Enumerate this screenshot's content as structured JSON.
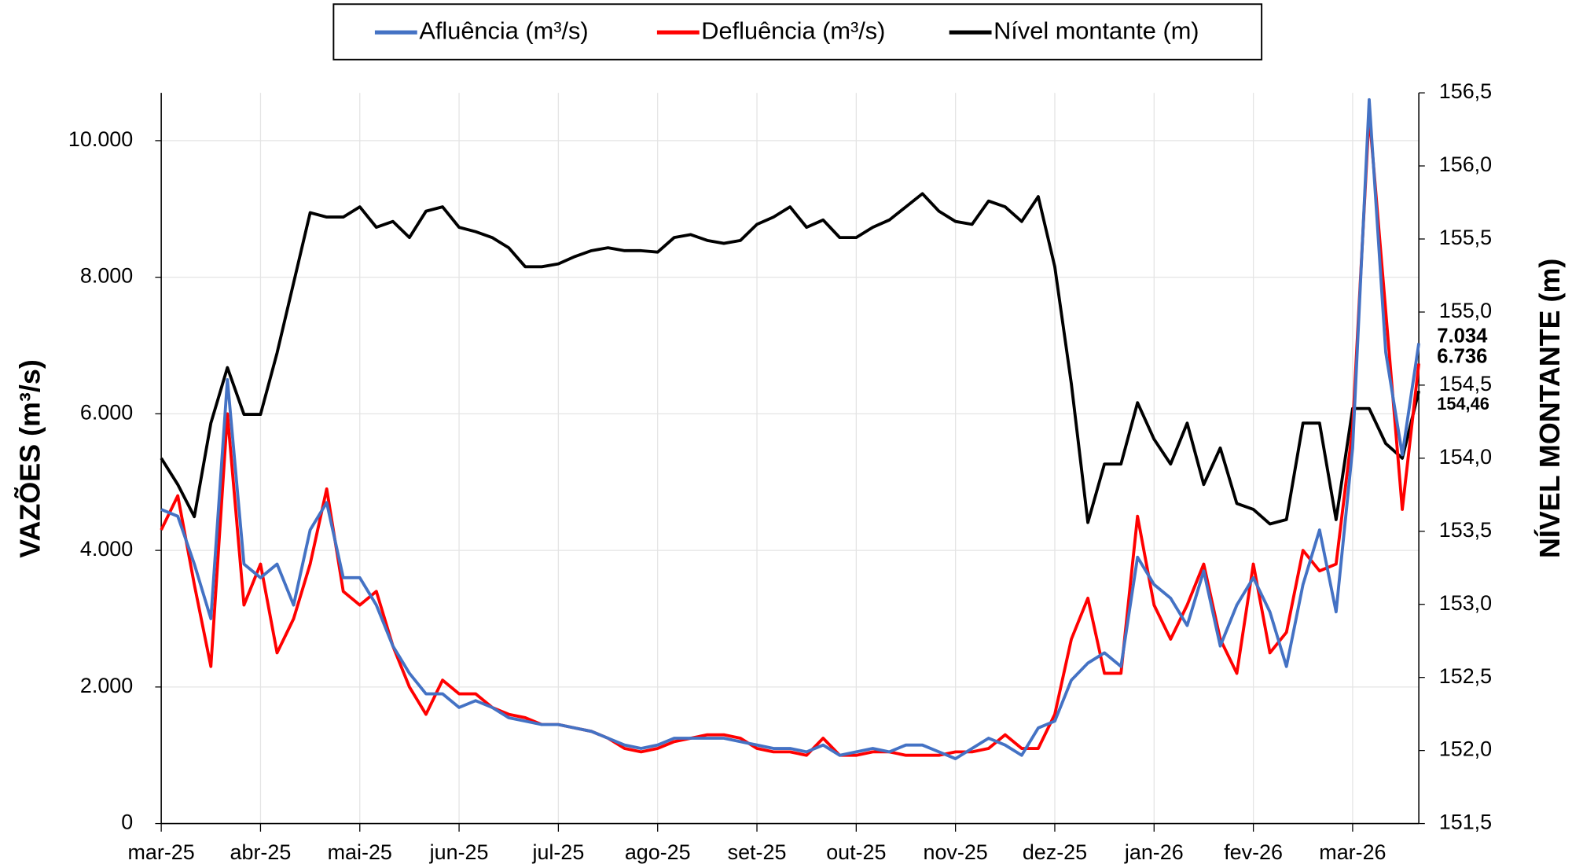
{
  "chart_data": {
    "type": "line",
    "categories": [
      "mar-25",
      null,
      null,
      null,
      null,
      null,
      "abr-25",
      null,
      null,
      null,
      null,
      null,
      "mai-25",
      null,
      null,
      null,
      null,
      null,
      "jun-25",
      null,
      null,
      null,
      null,
      null,
      "jul-25",
      null,
      null,
      null,
      null,
      null,
      "ago-25",
      null,
      null,
      null,
      null,
      null,
      "set-25",
      null,
      null,
      null,
      null,
      null,
      "out-25",
      null,
      null,
      null,
      null,
      null,
      "nov-25",
      null,
      null,
      null,
      null,
      null,
      "dez-25",
      null,
      null,
      null,
      null,
      null,
      "jan-26",
      null,
      null,
      null,
      null,
      null,
      "fev-26",
      null,
      null,
      null,
      null,
      null,
      "mar-26",
      null,
      null,
      null,
      null
    ],
    "ylabel": "VAZÕES (m³/s)",
    "y2label": "NÍVEL MONTANTE (m)",
    "ylim": [
      0,
      10700
    ],
    "yticks": [
      0,
      {
        "value": 2000,
        "label": "2.000"
      },
      {
        "value": 4000,
        "label": "4.000"
      },
      {
        "value": 6000,
        "label": "6.000"
      },
      {
        "value": 8000,
        "label": "8.000"
      },
      {
        "value": 10000,
        "label": "10.000"
      }
    ],
    "y2lim": [
      151.5,
      156.5
    ],
    "y2ticks": [
      {
        "value": 151.5,
        "label": "151,5"
      },
      {
        "value": 152.0,
        "label": "152,0"
      },
      {
        "value": 152.5,
        "label": "152,5"
      },
      {
        "value": 153.0,
        "label": "153,0"
      },
      {
        "value": 153.5,
        "label": "153,5"
      },
      {
        "value": 154.0,
        "label": "154,0"
      },
      {
        "value": 154.5,
        "label": "154,5"
      },
      {
        "value": 155.0,
        "label": "155,0"
      },
      {
        "value": 155.5,
        "label": "155,5"
      },
      {
        "value": 156.0,
        "label": "156,0"
      },
      {
        "value": 156.5,
        "label": "156,5"
      }
    ],
    "grid": true,
    "legend": "top",
    "series": [
      {
        "name": "Afluência (m³/s)",
        "color": "#4472c4",
        "values": [
          4600,
          4500,
          3800,
          3000,
          6500,
          3800,
          3600,
          3800,
          3200,
          4300,
          4700,
          3600,
          3600,
          3200,
          2600,
          2200,
          1900,
          1900,
          1700,
          1800,
          1700,
          1550,
          1500,
          1450,
          1450,
          1400,
          1350,
          1250,
          1150,
          1100,
          1150,
          1250,
          1250,
          1250,
          1250,
          1200,
          1150,
          1100,
          1100,
          1050,
          1150,
          1000,
          1050,
          1100,
          1050,
          1150,
          1150,
          1050,
          950,
          1100,
          1250,
          1150,
          1000,
          1400,
          1500,
          2100,
          2350,
          2500,
          2300,
          3900,
          3500,
          3300,
          2900,
          3700,
          2600,
          3200,
          3600,
          3100,
          2300,
          3500,
          4300,
          3100,
          5500,
          10600,
          6900,
          5400,
          7034
        ],
        "value_labels": [
          null,
          null,
          null,
          null,
          null,
          null,
          null,
          null,
          null,
          null,
          null,
          null,
          null,
          null,
          null,
          null,
          null,
          null,
          null,
          null,
          null,
          null,
          null,
          null,
          null,
          null,
          null,
          null,
          null,
          null,
          null,
          null,
          null,
          null,
          null,
          null,
          null,
          null,
          null,
          null,
          null,
          null,
          null,
          null,
          null,
          null,
          null,
          null,
          null,
          null,
          null,
          null,
          null,
          null,
          null,
          null,
          null,
          null,
          null,
          null,
          null,
          null,
          null,
          null,
          null,
          null,
          null,
          null,
          null,
          null,
          null,
          null,
          null,
          null,
          null,
          null,
          "7.034"
        ]
      },
      {
        "name": "Defluência (m³/s)",
        "color": "#ff0000",
        "values": [
          4300,
          4800,
          3500,
          2300,
          6000,
          3200,
          3800,
          2500,
          3000,
          3800,
          4900,
          3400,
          3200,
          3400,
          2600,
          2000,
          1600,
          2100,
          1900,
          1900,
          1700,
          1600,
          1550,
          1450,
          1450,
          1400,
          1350,
          1250,
          1100,
          1050,
          1100,
          1200,
          1250,
          1300,
          1300,
          1250,
          1100,
          1050,
          1050,
          1000,
          1250,
          1000,
          1000,
          1050,
          1050,
          1000,
          1000,
          1000,
          1050,
          1050,
          1100,
          1300,
          1100,
          1100,
          1600,
          2700,
          3300,
          2200,
          2200,
          4500,
          3200,
          2700,
          3200,
          3800,
          2700,
          2200,
          3800,
          2500,
          2800,
          4000,
          3700,
          3800,
          5800,
          10400,
          7500,
          4600,
          6736
        ],
        "value_labels": [
          null,
          null,
          null,
          null,
          null,
          null,
          null,
          null,
          null,
          null,
          null,
          null,
          null,
          null,
          null,
          null,
          null,
          null,
          null,
          null,
          null,
          null,
          null,
          null,
          null,
          null,
          null,
          null,
          null,
          null,
          null,
          null,
          null,
          null,
          null,
          null,
          null,
          null,
          null,
          null,
          null,
          null,
          null,
          null,
          null,
          null,
          null,
          null,
          null,
          null,
          null,
          null,
          null,
          null,
          null,
          null,
          null,
          null,
          null,
          null,
          null,
          null,
          null,
          null,
          null,
          null,
          null,
          null,
          null,
          null,
          null,
          null,
          null,
          null,
          null,
          null,
          "6.736"
        ]
      },
      {
        "name": "Nível montante (m)",
        "color": "#000000",
        "axis": "y2",
        "values": [
          154.0,
          153.82,
          153.6,
          154.24,
          154.62,
          154.3,
          154.3,
          154.72,
          155.2,
          155.68,
          155.65,
          155.65,
          155.72,
          155.58,
          155.62,
          155.51,
          155.69,
          155.72,
          155.58,
          155.55,
          155.51,
          155.44,
          155.31,
          155.31,
          155.33,
          155.38,
          155.42,
          155.44,
          155.42,
          155.42,
          155.41,
          155.51,
          155.53,
          155.49,
          155.47,
          155.49,
          155.6,
          155.65,
          155.72,
          155.58,
          155.63,
          155.51,
          155.51,
          155.58,
          155.63,
          155.72,
          155.81,
          155.69,
          155.62,
          155.6,
          155.76,
          155.72,
          155.62,
          155.79,
          155.31,
          154.51,
          153.56,
          153.96,
          153.96,
          154.38,
          154.13,
          153.96,
          154.24,
          153.82,
          154.07,
          153.69,
          153.65,
          153.55,
          153.58,
          154.24,
          154.24,
          153.58,
          154.34,
          154.34,
          154.1,
          154.0,
          154.46
        ],
        "value_labels": [
          null,
          null,
          null,
          null,
          null,
          null,
          null,
          null,
          null,
          null,
          null,
          null,
          null,
          null,
          null,
          null,
          null,
          null,
          null,
          null,
          null,
          null,
          null,
          null,
          null,
          null,
          null,
          null,
          null,
          null,
          null,
          null,
          null,
          null,
          null,
          null,
          null,
          null,
          null,
          null,
          null,
          null,
          null,
          null,
          null,
          null,
          null,
          null,
          null,
          null,
          null,
          null,
          null,
          null,
          null,
          null,
          null,
          null,
          null,
          null,
          null,
          null,
          null,
          null,
          null,
          null,
          null,
          null,
          null,
          null,
          null,
          null,
          null,
          null,
          null,
          null,
          "154,46"
        ]
      }
    ]
  }
}
